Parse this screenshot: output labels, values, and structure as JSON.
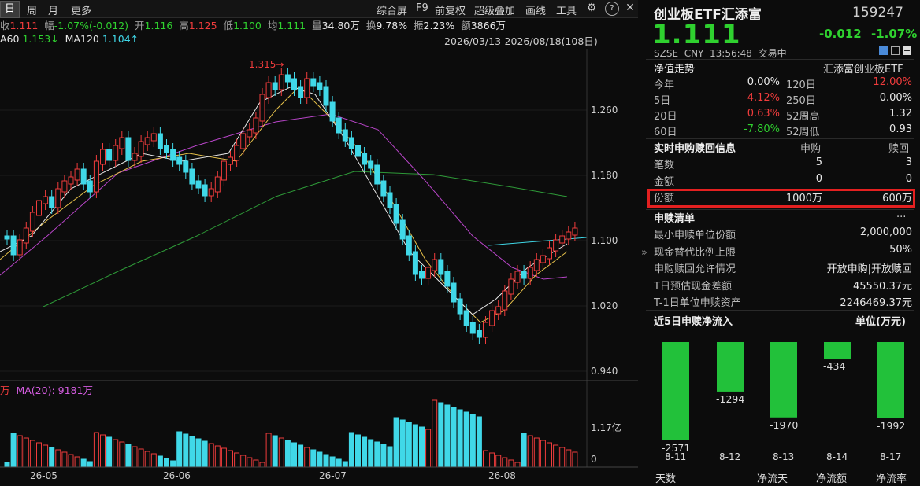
{
  "toolbar": {
    "period_tabs": [
      "日",
      "周",
      "月",
      "更多"
    ],
    "actions": [
      "综合屏",
      "F9",
      "前复权",
      "超级叠加",
      "画线",
      "工具"
    ],
    "icons": [
      "gear-icon",
      "help-icon",
      "close-icon"
    ]
  },
  "info_row": {
    "close_label": "收",
    "close_value": "1.111",
    "change_label": "幅",
    "change_value": "-1.07%(-0.012)",
    "open_label": "开",
    "open_value": "1.116",
    "high_label": "高",
    "high_value": "1.125",
    "low_label": "低",
    "low_value": "1.100",
    "avg_label": "均",
    "avg_value": "1.111",
    "volume_label": "量",
    "volume_value": "34.80万",
    "turnover_label": "换",
    "turnover_value": "9.78%",
    "amplitude_label": "振",
    "amplitude_value": "2.23%",
    "amount_label": "额",
    "amount_value": "3866万"
  },
  "ma_row": {
    "ma60_label": "A60",
    "ma60_value": "1.153↓",
    "ma120_label": "MA120",
    "ma120_value": "1.104↑",
    "date_range": "2026/03/13-2026/08/18(108日)"
  },
  "price_axis": [
    "1.260",
    "1.180",
    "1.100",
    "1.020",
    "0.940"
  ],
  "high_marker": "1.315→",
  "volume_row": {
    "unit": "万",
    "ma20_label": "MA(20): 9181万"
  },
  "volume_axis": [
    "1.17亿",
    "0"
  ],
  "x_axis": [
    "26-05",
    "26-06",
    "26-07",
    "26-08"
  ],
  "fund": {
    "name": "创业板ETF汇添富",
    "code": "159247",
    "price": "1.111",
    "change": "-0.012",
    "change_pct": "-1.07%",
    "exchange": "SZSE",
    "currency": "CNY",
    "time": "13:56:48",
    "status": "交易中"
  },
  "nav_section": {
    "title": "净值走势",
    "fund_full_name": "汇添富创业板ETF",
    "rows": [
      {
        "l1": "今年",
        "v1": "0.00%",
        "l2": "120日",
        "v2": "12.00%",
        "c1": "white",
        "c2": "red"
      },
      {
        "l1": "5日",
        "v1": "4.12%",
        "l2": "250日",
        "v2": "0.00%",
        "c1": "red",
        "c2": "white"
      },
      {
        "l1": "20日",
        "v1": "0.63%",
        "l2": "52周高",
        "v2": "1.32",
        "c1": "red",
        "c2": "white"
      },
      {
        "l1": "60日",
        "v1": "-7.80%",
        "l2": "52周低",
        "v2": "0.93",
        "c1": "green",
        "c2": "white"
      }
    ]
  },
  "realtime": {
    "title": "实时申购赎回信息",
    "col_sub": "申购",
    "col_red": "赎回",
    "rows": [
      {
        "label": "笔数",
        "sub": "5",
        "red": "3"
      },
      {
        "label": "金额",
        "sub": "0",
        "red": "0"
      },
      {
        "label": "份额",
        "sub": "1000万",
        "red": "600万"
      }
    ]
  },
  "creation_list": {
    "title": "申赎清单",
    "more": "...",
    "rows": [
      {
        "label": "最小申赎单位份额",
        "value": "2,000,000"
      },
      {
        "label": "现金替代比例上限",
        "value": "50%"
      },
      {
        "label": "申购赎回允许情况",
        "value": "开放申购|开放赎回"
      },
      {
        "label": "T日预估现金差额",
        "value": "45550.37元"
      },
      {
        "label": "T-1日单位申赎资产",
        "value": "2246469.37元"
      }
    ]
  },
  "net_flow": {
    "title": "近5日申赎净流入",
    "unit": "单位(万元)",
    "days": [
      "8-11",
      "8-12",
      "8-13",
      "8-14",
      "8-17"
    ],
    "values": [
      -2571,
      -1294,
      -1970,
      -434,
      -1992
    ],
    "value_labels": [
      "-2571",
      "-1294",
      "-1970",
      "-434",
      "-1992"
    ]
  },
  "bottom_tabs": [
    "天数",
    "净流天",
    "净流额",
    "净流率"
  ],
  "colors": {
    "up": "#f03c3c",
    "down": "#40d8e8",
    "flow": "#22c13a",
    "highlight": "#e32020"
  }
}
